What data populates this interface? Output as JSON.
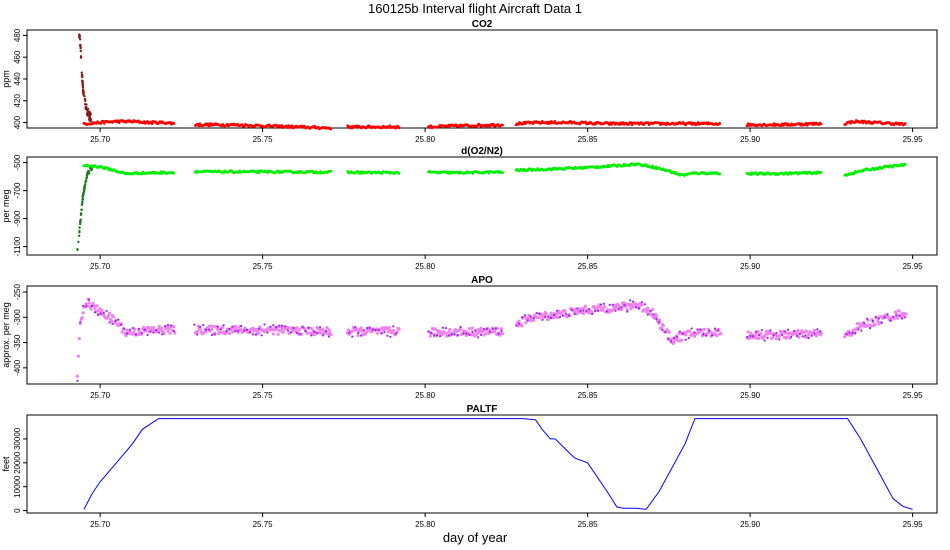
{
  "figure": {
    "title": "160125b   Interval flight Aircraft Data 1",
    "xlabel": "day of year"
  },
  "colors": {
    "co2_main": "#ff0000",
    "co2_early": "#8b1a1a",
    "o2n2_main": "#00ee00",
    "o2n2_early": "#1f7a1f",
    "apo_main": "#ee82ee",
    "apo_edge": "#a020f0",
    "paltf_line": "#0000ff"
  },
  "chart_data": [
    {
      "type": "scatter",
      "title": "CO2",
      "ylabel": "ppm",
      "xlim": [
        25.6775,
        25.9575
      ],
      "ylim": [
        395,
        485
      ],
      "xticks": [
        25.7,
        25.75,
        25.8,
        25.85,
        25.9,
        25.95
      ],
      "xtick_labels": [
        "25.70",
        "25.75",
        "25.80",
        "25.85",
        "25.90",
        "25.95"
      ],
      "yticks": [
        400,
        420,
        440,
        460,
        480
      ],
      "ytick_labels": [
        "400",
        "420",
        "440",
        "460",
        "480"
      ],
      "segments": [
        [
          25.6945,
          25.723
        ],
        [
          25.729,
          25.771
        ],
        [
          25.776,
          25.792
        ],
        [
          25.801,
          25.824
        ],
        [
          25.828,
          25.891
        ],
        [
          25.899,
          25.922
        ],
        [
          25.929,
          25.948
        ]
      ],
      "series": [
        {
          "x": [
            25.6935,
            25.694,
            25.6942,
            25.6945,
            25.6948,
            25.6952,
            25.6958,
            25.6965,
            25.6975,
            25.699,
            25.701,
            25.704
          ],
          "y": [
            483,
            470,
            455,
            440,
            430,
            422,
            413,
            407,
            403,
            401,
            400,
            399
          ]
        },
        {
          "x": [
            25.695,
            25.7,
            25.705,
            25.71,
            25.715,
            25.72,
            25.723,
            25.729,
            25.74,
            25.75,
            25.76,
            25.771,
            25.776,
            25.784,
            25.792,
            25.801,
            25.81,
            25.824,
            25.828,
            25.835,
            25.845,
            25.855,
            25.865,
            25.875,
            25.885,
            25.891,
            25.899,
            25.91,
            25.922,
            25.929,
            25.932,
            25.938,
            25.945,
            25.948
          ],
          "y": [
            399,
            400,
            401,
            401,
            400,
            400,
            399,
            398,
            398,
            397,
            396,
            395,
            396,
            396,
            396,
            396,
            397,
            398,
            399,
            400,
            400,
            399,
            399,
            399,
            399,
            399,
            398,
            398,
            399,
            399,
            401,
            400,
            399,
            398
          ]
        }
      ]
    },
    {
      "type": "scatter",
      "title": "d(O2/N2)",
      "ylabel": "per meg",
      "xlim": [
        25.6775,
        25.9575
      ],
      "ylim": [
        -1160,
        -460
      ],
      "xticks": [
        25.7,
        25.75,
        25.8,
        25.85,
        25.9,
        25.95
      ],
      "xtick_labels": [
        "25.70",
        "25.75",
        "25.80",
        "25.85",
        "25.90",
        "25.95"
      ],
      "yticks": [
        -500,
        -700,
        -900,
        -1100
      ],
      "ytick_labels": [
        "-500",
        "-700",
        "-900",
        "-1100"
      ],
      "segments": [
        [
          25.6945,
          25.723
        ],
        [
          25.729,
          25.771
        ],
        [
          25.776,
          25.792
        ],
        [
          25.801,
          25.824
        ],
        [
          25.828,
          25.891
        ],
        [
          25.899,
          25.922
        ],
        [
          25.929,
          25.948
        ]
      ],
      "series": [
        {
          "x": [
            25.693,
            25.6933,
            25.6936,
            25.694,
            25.6943,
            25.6946,
            25.695,
            25.6955,
            25.696,
            25.697,
            25.698
          ],
          "y": [
            -1130,
            -1070,
            -1000,
            -900,
            -830,
            -760,
            -700,
            -640,
            -590,
            -545,
            -525
          ]
        },
        {
          "x": [
            25.695,
            25.7,
            25.705,
            25.708,
            25.712,
            25.723,
            25.729,
            25.75,
            25.771,
            25.776,
            25.792,
            25.801,
            25.81,
            25.824,
            25.828,
            25.84,
            25.85,
            25.86,
            25.865,
            25.87,
            25.875,
            25.879,
            25.883,
            25.891,
            25.899,
            25.91,
            25.922,
            25.929,
            25.935,
            25.942,
            25.948
          ],
          "y": [
            -520,
            -530,
            -560,
            -580,
            -575,
            -570,
            -565,
            -566,
            -568,
            -570,
            -572,
            -570,
            -572,
            -568,
            -555,
            -545,
            -535,
            -520,
            -510,
            -530,
            -560,
            -590,
            -575,
            -575,
            -580,
            -578,
            -572,
            -590,
            -555,
            -530,
            -515
          ]
        }
      ]
    },
    {
      "type": "scatter",
      "title": "APO",
      "ylabel": "approx. per meg",
      "xlim": [
        25.6775,
        25.9575
      ],
      "ylim": [
        -432,
        -238
      ],
      "xticks": [
        25.7,
        25.75,
        25.8,
        25.85,
        25.9,
        25.95
      ],
      "xtick_labels": [
        "25.70",
        "25.75",
        "25.80",
        "25.85",
        "25.90",
        "25.95"
      ],
      "yticks": [
        -250,
        -300,
        -350,
        -400
      ],
      "ytick_labels": [
        "-250",
        "-300",
        "-350",
        "-400"
      ],
      "segments": [
        [
          25.693,
          25.723
        ],
        [
          25.729,
          25.771
        ],
        [
          25.776,
          25.792
        ],
        [
          25.801,
          25.824
        ],
        [
          25.828,
          25.891
        ],
        [
          25.899,
          25.922
        ],
        [
          25.929,
          25.948
        ]
      ],
      "series": [
        {
          "x": [
            25.693,
            25.694,
            25.696,
            25.698,
            25.7,
            25.703,
            25.706,
            25.708,
            25.71,
            25.715,
            25.723,
            25.729,
            25.75,
            25.771,
            25.776,
            25.792,
            25.801,
            25.824,
            25.828,
            25.833,
            25.84,
            25.85,
            25.86,
            25.865,
            25.87,
            25.873,
            25.876,
            25.88,
            25.885,
            25.891,
            25.899,
            25.91,
            25.922,
            25.929,
            25.933,
            25.94,
            25.945,
            25.948
          ],
          "y": [
            -420,
            -300,
            -270,
            -280,
            -290,
            -300,
            -315,
            -330,
            -330,
            -325,
            -325,
            -325,
            -325,
            -328,
            -328,
            -328,
            -330,
            -328,
            -315,
            -300,
            -295,
            -285,
            -280,
            -275,
            -290,
            -320,
            -345,
            -335,
            -330,
            -330,
            -335,
            -335,
            -332,
            -340,
            -320,
            -305,
            -295,
            -290
          ]
        }
      ]
    },
    {
      "type": "line",
      "title": "PALTF",
      "ylabel": "feet",
      "xlim": [
        25.6775,
        25.9575
      ],
      "ylim": [
        -1000,
        40000
      ],
      "xticks": [
        25.7,
        25.75,
        25.8,
        25.85,
        25.9,
        25.95
      ],
      "xtick_labels": [
        "25.70",
        "25.75",
        "25.80",
        "25.85",
        "25.90",
        "25.95"
      ],
      "yticks": [
        0,
        10000,
        20000,
        30000
      ],
      "ytick_labels": [
        "0",
        "10000",
        "20000",
        "30000"
      ],
      "series": [
        {
          "x": [
            25.695,
            25.6975,
            25.7,
            25.705,
            25.71,
            25.713,
            25.718,
            25.83,
            25.834,
            25.836,
            25.8385,
            25.84,
            25.843,
            25.846,
            25.85,
            25.856,
            25.859,
            25.861,
            25.864,
            25.865,
            25.868,
            25.872,
            25.876,
            25.88,
            25.883,
            25.93,
            25.934,
            25.938,
            25.942,
            25.944,
            25.947,
            25.95
          ],
          "y": [
            500,
            7000,
            12000,
            20000,
            28000,
            34000,
            38500,
            38500,
            38000,
            34000,
            30000,
            30000,
            26000,
            22000,
            20000,
            8000,
            1500,
            1000,
            1000,
            1000,
            500,
            8000,
            18000,
            28000,
            38500,
            38500,
            30000,
            20000,
            10000,
            5000,
            1800,
            500
          ]
        }
      ]
    }
  ]
}
